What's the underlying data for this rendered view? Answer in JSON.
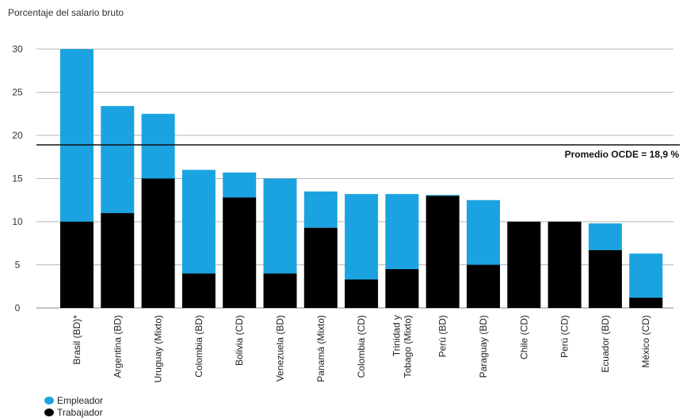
{
  "chart_data": {
    "type": "bar",
    "stacked": true,
    "ylabel": "Porcentaje del salario bruto",
    "ylim": [
      0,
      30
    ],
    "yticks": [
      0,
      5,
      10,
      15,
      20,
      25,
      30
    ],
    "grid": true,
    "legend_placement": "bottom-left",
    "categories": [
      "Brasil (BD)*",
      "Argentina (BD)",
      "Uruguay (Mixto)",
      "Colombia (BD)",
      "Bolivia (CD)",
      "Venezuela (BD)",
      "Panamá (Mixto)",
      "Colombia (CD)",
      "Trinidad y|Tobago (Mixto)",
      "Perú (BD)",
      "Paraguay (BD)",
      "Chile (CD)",
      "Perú (CD)",
      "Ecuador (BD)",
      "México (CD)"
    ],
    "series": [
      {
        "name": "Trabajador",
        "color": "#000000",
        "values": [
          10,
          11,
          15,
          4,
          12.8,
          4,
          9.3,
          3.3,
          4.5,
          13,
          5,
          10,
          10,
          6.7,
          1.2
        ]
      },
      {
        "name": "Empleador",
        "color": "#1aa3e0",
        "values": [
          20,
          12.4,
          7.5,
          12,
          2.9,
          11,
          4.2,
          9.9,
          8.7,
          0.1,
          7.5,
          0,
          0,
          3.1,
          5.1
        ]
      }
    ],
    "reference_line": {
      "value": 18.9,
      "label": "Promedio OCDE = 18,9 %"
    }
  },
  "legend": [
    {
      "label": "Empleador",
      "color": "#1aa3e0"
    },
    {
      "label": "Trabajador",
      "color": "#000000"
    }
  ]
}
